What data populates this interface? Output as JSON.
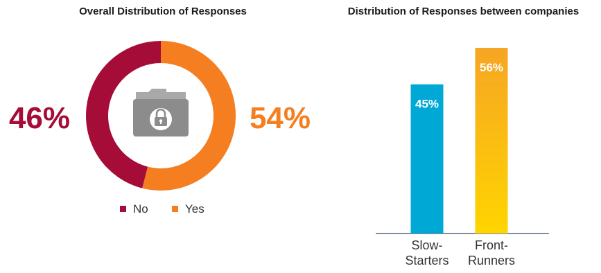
{
  "colors": {
    "no": "#a50c37",
    "yes": "#f47e20",
    "slow": "#00a8d6",
    "front_top": "#f6a523",
    "front_bottom": "#ffd500",
    "icon": "#8c8c8c",
    "axis": "#3a4a6b"
  },
  "icon": "folder-lock-icon",
  "chart_data": [
    {
      "type": "pie",
      "title": "Overall Distribution of Responses",
      "categories": [
        "No",
        "Yes"
      ],
      "values": [
        46,
        54
      ],
      "labels": [
        "46%",
        "54%"
      ],
      "legend": [
        "No",
        "Yes"
      ],
      "legend_position": "bottom"
    },
    {
      "type": "bar",
      "title": "Distribution of Responses between companies",
      "categories": [
        "Slow-\nStarters",
        "Front-\nRunners"
      ],
      "category_lines": [
        [
          "Slow-",
          "Starters"
        ],
        [
          "Front-",
          "Runners"
        ]
      ],
      "values": [
        45,
        56
      ],
      "labels": [
        "45%",
        "56%"
      ],
      "ylim": [
        0,
        65
      ],
      "grid": false
    }
  ]
}
